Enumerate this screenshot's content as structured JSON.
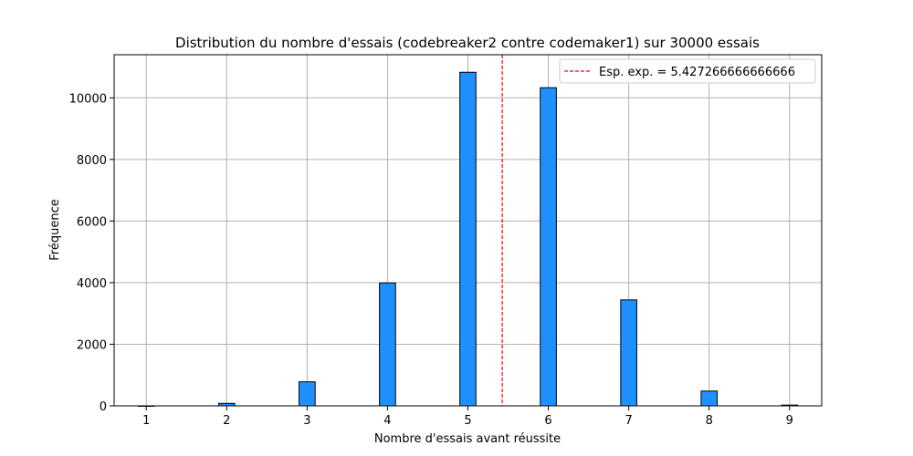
{
  "chart_data": {
    "type": "bar",
    "title": "Distribution du nombre d'essais (codebreaker2 contre codemaker1) sur 30000 essais",
    "xlabel": "Nombre d'essais avant réussite",
    "ylabel": "Fréquence",
    "x": [
      1,
      2,
      3,
      4,
      5,
      6,
      7,
      8,
      9
    ],
    "values": [
      0,
      80,
      780,
      3990,
      10830,
      10330,
      3440,
      480,
      25
    ],
    "xlim": [
      0.6,
      9.4
    ],
    "ylim": [
      0,
      11400
    ],
    "xticks": [
      1,
      2,
      3,
      4,
      5,
      6,
      7,
      8,
      9
    ],
    "yticks": [
      0,
      2000,
      4000,
      6000,
      8000,
      10000
    ],
    "bar_color": "#1e90ff",
    "bar_edge_color": "#000000",
    "grid": true,
    "mean_line": {
      "x": 5.427266666666666,
      "color": "#ff0000",
      "style": "dashed"
    },
    "legend": {
      "position": "top-right",
      "label": "Esp. exp. = 5.427266666666666"
    }
  }
}
